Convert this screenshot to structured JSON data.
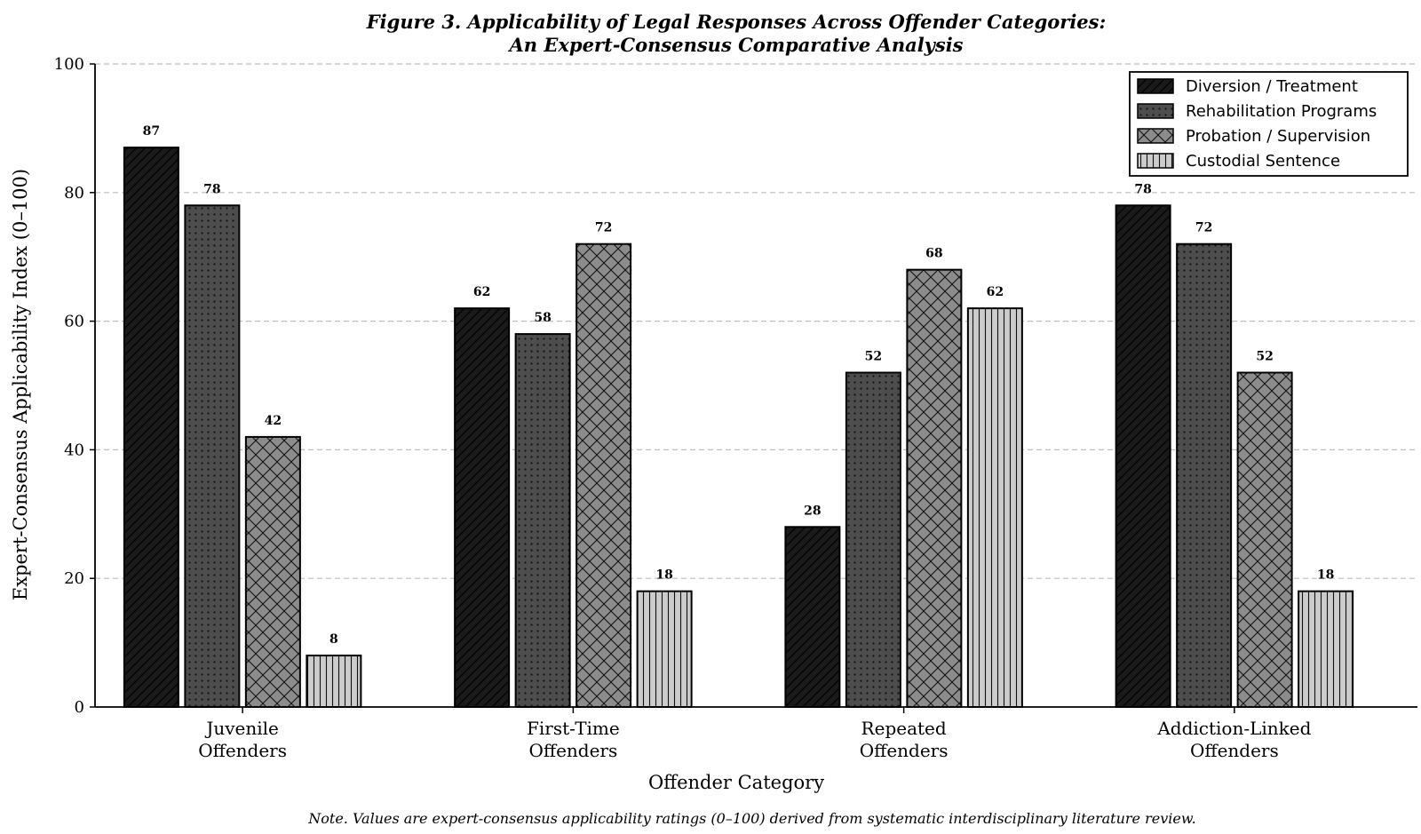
{
  "chart_data": {
    "type": "bar",
    "title_line1": "Figure 3. Applicability of Legal Responses Across Offender Categories:",
    "title_line2": "An Expert-Consensus Comparative Analysis",
    "xlabel": "Offender Category",
    "ylabel": "Expert-Consensus Applicability Index (0–100)",
    "ylim": [
      0,
      100
    ],
    "yticks": [
      "0",
      "20",
      "40",
      "60",
      "80",
      "100"
    ],
    "grid": "horizontal dashed",
    "legend_position": "top-right",
    "categories": [
      [
        "Juvenile",
        "Offenders"
      ],
      [
        "First-Time",
        "Offenders"
      ],
      [
        "Repeated",
        "Offenders"
      ],
      [
        "Addiction-Linked",
        "Offenders"
      ]
    ],
    "series": [
      {
        "name": "Diversion / Treatment",
        "values": [
          87,
          62,
          28,
          78
        ],
        "color": "#1a1a1a",
        "pattern": "diagonal-hatch"
      },
      {
        "name": "Rehabilitation Programs",
        "values": [
          78,
          58,
          52,
          72
        ],
        "color": "#4d4d4d",
        "pattern": "dots"
      },
      {
        "name": "Probation / Supervision",
        "values": [
          42,
          72,
          68,
          52
        ],
        "color": "#8c8c8c",
        "pattern": "cross-hatch"
      },
      {
        "name": "Custodial Sentence",
        "values": [
          8,
          18,
          62,
          18
        ],
        "color": "#cccccc",
        "pattern": "vertical-lines"
      }
    ],
    "note": "Note. Values are expert-consensus applicability ratings (0–100) derived from systematic interdisciplinary literature review."
  }
}
